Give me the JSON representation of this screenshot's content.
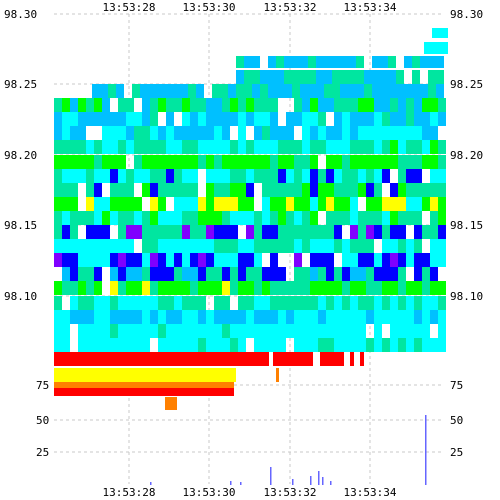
{
  "time_labels": [
    "13:53:28",
    "13:53:30",
    "13:53:32",
    "13:53:34"
  ],
  "price_labels": [
    "98.30",
    "98.25",
    "98.20",
    "98.15",
    "98.10"
  ],
  "volume_labels": [
    "75",
    "50",
    "25"
  ],
  "colors": {
    "red": "#ff0000",
    "yellow": "#ffff00",
    "orange": "#ff8000",
    "green": "#00ff00",
    "teal": "#00e6a0",
    "cyan": "#00ffff",
    "sky": "#00c0ff",
    "blue": "#0000ff",
    "purple": "#8000ff",
    "volume": "#6666ff",
    "grid": "#c8c8c8"
  },
  "chart_data": {
    "type": "heatmap",
    "title": "",
    "xlabel": "",
    "ylabel": "",
    "x_ticks": [
      "13:53:28",
      "13:53:30",
      "13:53:32",
      "13:53:34"
    ],
    "price_axis": {
      "ticks": [
        "98.30",
        "98.25",
        "98.20",
        "98.15",
        "98.10"
      ],
      "ylim": [
        98.057,
        98.3
      ]
    },
    "volume_axis": {
      "ticks": [
        "75",
        "50",
        "25"
      ],
      "ylim": [
        0,
        95
      ]
    },
    "grid": true,
    "legend": "none"
  }
}
